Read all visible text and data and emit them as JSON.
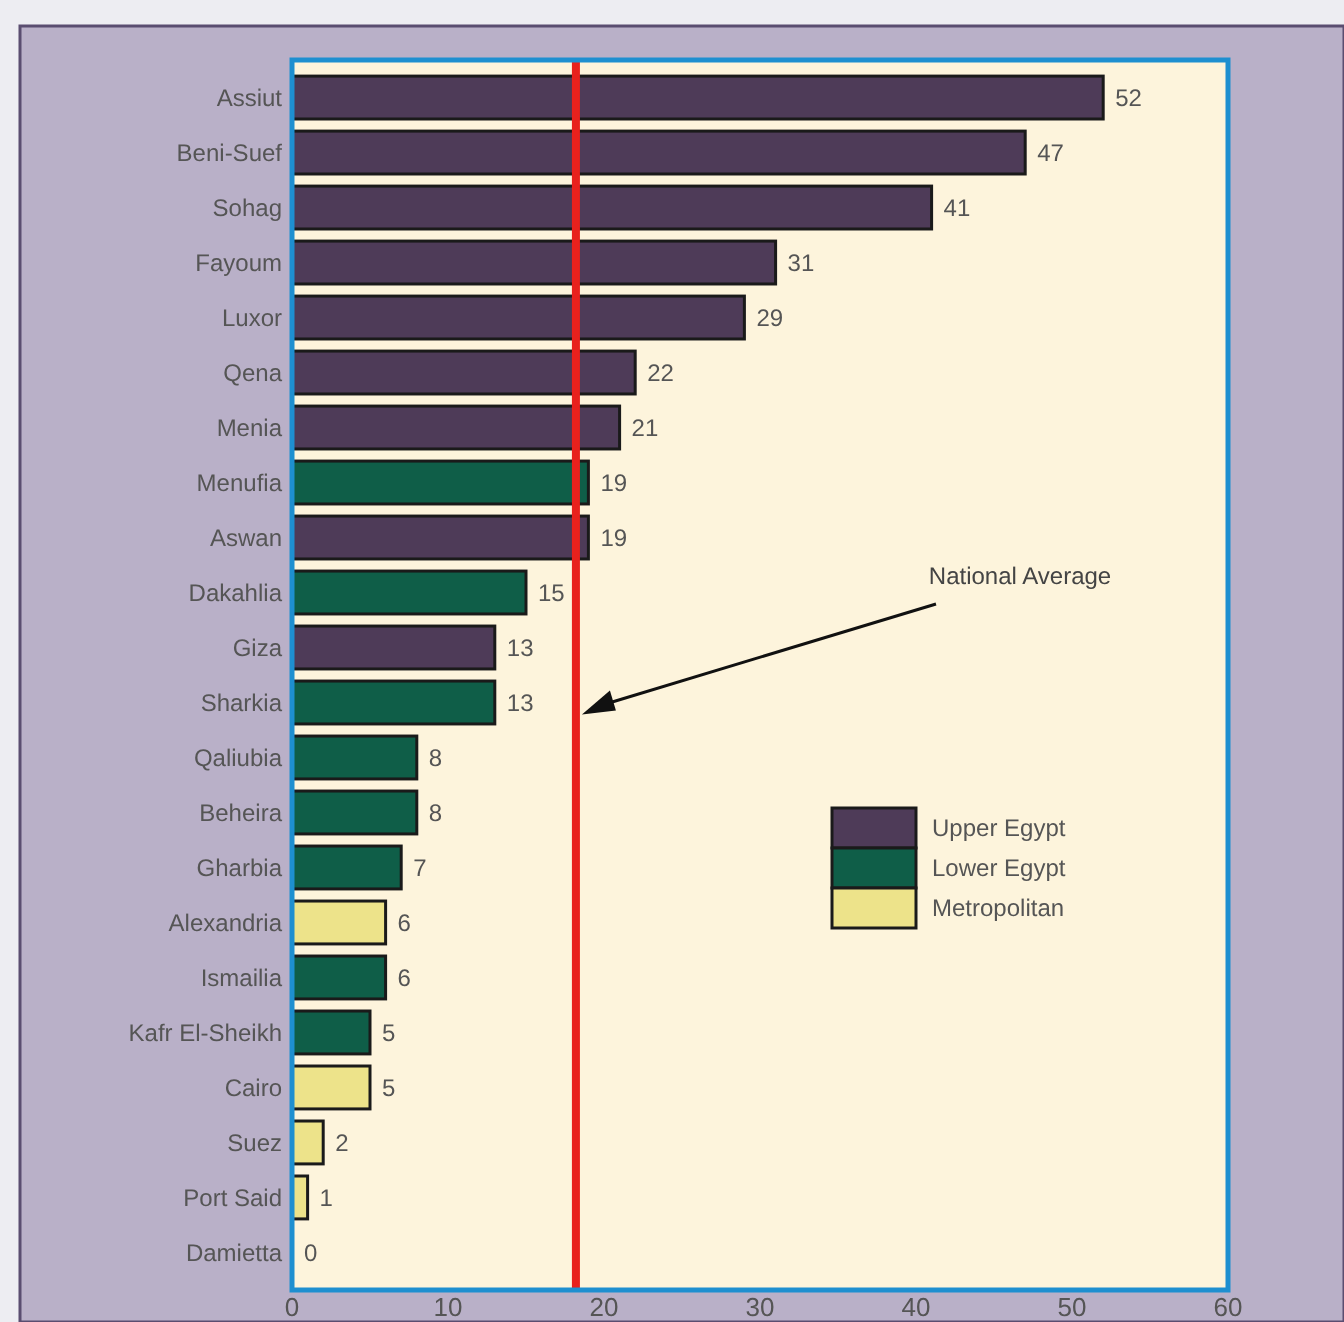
{
  "chart_data": {
    "type": "bar",
    "orientation": "horizontal",
    "annotations": [
      "National Average"
    ],
    "categories": [
      "Assiut",
      "Beni-Suef",
      "Sohag",
      "Fayoum",
      "Luxor",
      "Qena",
      "Menia",
      "Menufia",
      "Aswan",
      "Dakahlia",
      "Giza",
      "Sharkia",
      "Qaliubia",
      "Beheira",
      "Gharbia",
      "Alexandria",
      "Ismailia",
      "Kafr El-Sheikh",
      "Cairo",
      "Suez",
      "Port Said",
      "Damietta"
    ],
    "series": [
      {
        "name": "Upper Egypt",
        "color": "#4e3b58",
        "values": [
          52,
          47,
          41,
          31,
          29,
          22,
          21,
          null,
          19,
          null,
          13,
          null,
          null,
          null,
          null,
          null,
          null,
          null,
          null,
          null,
          null,
          null
        ]
      },
      {
        "name": "Lower Egypt",
        "color": "#0f5e48",
        "values": [
          null,
          null,
          null,
          null,
          null,
          null,
          null,
          19,
          null,
          15,
          null,
          13,
          8,
          8,
          7,
          null,
          6,
          5,
          null,
          null,
          null,
          0
        ]
      },
      {
        "name": "Metropolitan",
        "color": "#ede38a",
        "values": [
          null,
          null,
          null,
          null,
          null,
          null,
          null,
          null,
          null,
          null,
          null,
          null,
          null,
          null,
          null,
          6,
          null,
          null,
          5,
          2,
          1,
          null
        ]
      }
    ],
    "xlim": [
      0,
      60
    ],
    "xticks": [
      0,
      10,
      20,
      30,
      40,
      50,
      60
    ],
    "ref_lines": [
      {
        "axis": "x",
        "value": 18.2,
        "color": "#e8211d"
      }
    ],
    "data_labels": true,
    "legend": "right",
    "grid": false
  }
}
